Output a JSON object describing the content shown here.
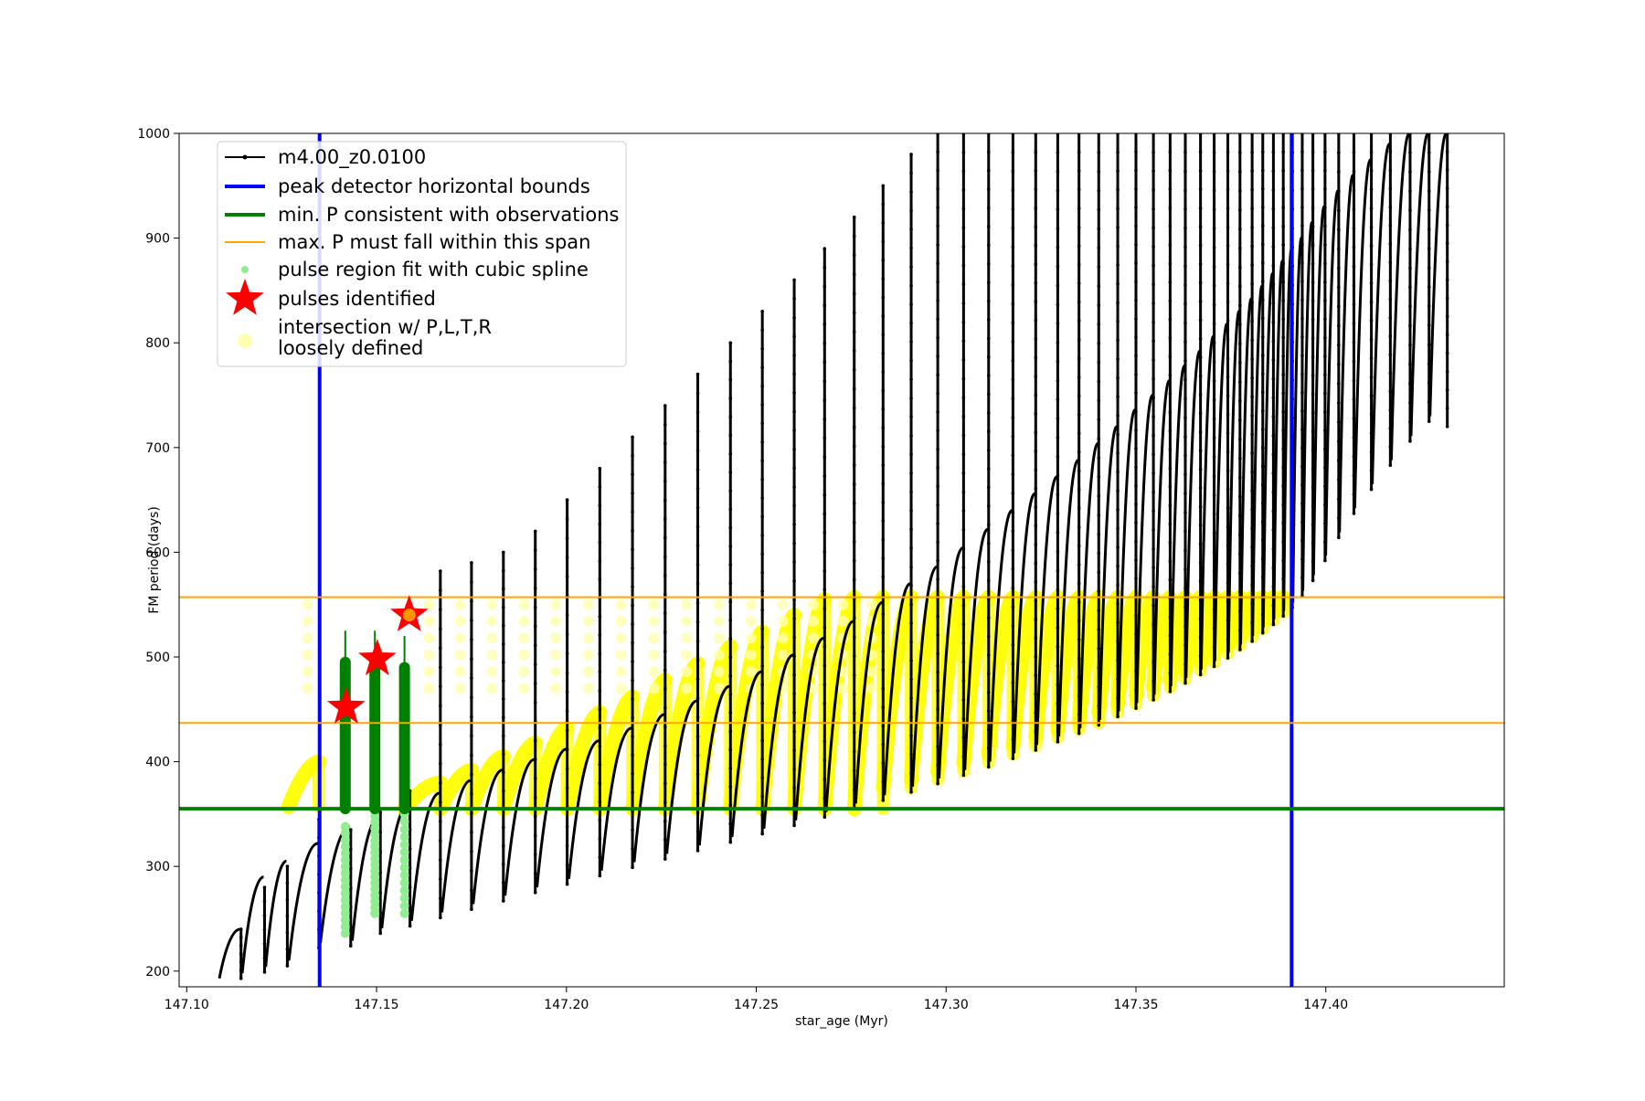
{
  "chart_data": {
    "type": "scatter",
    "title": "",
    "xlabel": "star_age (Myr)",
    "ylabel": "FM period (days)",
    "xlim": [
      147.098,
      147.447
    ],
    "ylim": [
      185,
      1000
    ],
    "xticks": [
      "147.10",
      "147.15",
      "147.20",
      "147.25",
      "147.30",
      "147.35",
      "147.40"
    ],
    "yticks": [
      "200",
      "300",
      "400",
      "500",
      "600",
      "700",
      "800",
      "900",
      "1000"
    ],
    "grid": false,
    "legend_position": "top-left",
    "legend": [
      {
        "label": "m4.00_z0.0100",
        "marker": "line-dot",
        "color": "#000000"
      },
      {
        "label": "peak detector horizontal bounds",
        "marker": "line",
        "color": "#0000ff"
      },
      {
        "label": "min. P consistent with observations",
        "marker": "line",
        "color": "#008000"
      },
      {
        "label": "max. P must fall within this span",
        "marker": "line",
        "color": "#ffa500"
      },
      {
        "label": "pulse region fit with cubic spline",
        "marker": "dot",
        "color": "#90ee90"
      },
      {
        "label": "pulses identified",
        "marker": "star",
        "color": "#ff0000"
      },
      {
        "label": "intersection w/ P,L,T,R",
        "label2": "loosely defined",
        "marker": "circle",
        "color": "#ffffb0"
      }
    ],
    "vertical_lines": [
      {
        "name": "peak detector horizontal bounds",
        "x": [
          147.135,
          147.391
        ],
        "color": "#0000ff"
      }
    ],
    "horizontal_lines": [
      {
        "name": "min. P consistent with observations",
        "y": 355,
        "color": "#008000"
      },
      {
        "name": "max. P must fall within this span",
        "y": [
          437,
          557
        ],
        "color": "#ffa500"
      }
    ],
    "series_track": {
      "name": "m4.00_z0.0100",
      "color": "#000000",
      "pulse_x": [
        147.1143,
        147.1205,
        147.1265,
        147.1348,
        147.1432,
        147.151,
        147.1588,
        147.1668,
        147.175,
        147.1834,
        147.1918,
        147.2002,
        147.2088,
        147.2174,
        147.226,
        147.2346,
        147.2432,
        147.2516,
        147.26,
        147.268,
        147.2758,
        147.2834,
        147.2908,
        147.2978,
        147.3046,
        147.3112,
        147.3176,
        147.3236,
        147.3294,
        147.335,
        147.3402,
        147.3452,
        147.35,
        147.3546,
        147.359,
        147.363,
        147.367,
        147.3706,
        147.3742,
        147.3774,
        147.3806,
        147.3834,
        147.3862,
        147.3888,
        147.3912,
        147.3938,
        147.3966,
        147.3998,
        147.4034,
        147.4074,
        147.412,
        147.417,
        147.4222,
        147.4272,
        147.432
      ],
      "pulse_min_period": [
        193,
        199,
        205,
        222,
        224,
        236,
        243,
        251,
        259,
        267,
        275,
        283,
        291,
        299,
        307,
        315,
        323,
        331,
        339,
        347,
        355,
        363,
        371,
        379,
        387,
        395,
        403,
        411,
        419,
        427,
        435,
        443,
        451,
        459,
        467,
        475,
        483,
        491,
        499,
        507,
        515,
        523,
        531,
        539,
        547,
        558,
        573,
        592,
        614,
        637,
        660,
        683,
        706,
        725,
        720
      ],
      "pulse_max_period": [
        240,
        280,
        300,
        345,
        335,
        352,
        372,
        582,
        590,
        600,
        620,
        650,
        680,
        710,
        740,
        770,
        800,
        830,
        860,
        890,
        920,
        950,
        980,
        1000,
        1000,
        1000,
        1000,
        1000,
        1000,
        1000,
        1000,
        1000,
        1000,
        1000,
        1000,
        1000,
        1000,
        1000,
        1000,
        1000,
        1000,
        1000,
        1000,
        1000,
        1000,
        1000,
        1000,
        1000,
        1000,
        1000,
        1000,
        1000,
        1000,
        1000,
        1000
      ],
      "envelope_before_pulse": [
        240,
        290,
        305,
        322,
        338,
        348,
        360,
        370,
        382,
        392,
        402,
        412,
        420,
        432,
        445,
        458,
        472,
        486,
        502,
        518,
        534,
        552,
        570,
        586,
        604,
        622,
        640,
        656,
        672,
        688,
        704,
        720,
        736,
        750,
        764,
        778,
        792,
        806,
        818,
        830,
        842,
        854,
        866,
        878,
        890,
        900,
        915,
        930,
        945,
        960,
        975,
        990,
        1000,
        1000,
        1000
      ]
    },
    "series_spline_fit": {
      "name": "pulse region fit with cubic spline",
      "color": "#90ee90",
      "x": [
        147.1432,
        147.151,
        147.1588
      ],
      "y_min": [
        236,
        255,
        255
      ],
      "y_max": [
        338,
        348,
        372
      ]
    },
    "series_green_band": {
      "color": "#008000",
      "x": [
        147.1432,
        147.151,
        147.1588
      ],
      "y_min": [
        355,
        355,
        355
      ],
      "y_max": [
        525,
        525,
        520
      ]
    },
    "series_pulses_identified": {
      "name": "pulses identified",
      "color": "#ff0000",
      "points": [
        {
          "x": 147.142,
          "y": 452
        },
        {
          "x": 147.1502,
          "y": 498
        },
        {
          "x": 147.1586,
          "y": 540
        }
      ]
    },
    "series_intersection": {
      "name": "intersection w/ P,L,T,R loosely defined",
      "color": "#ffff00",
      "pulse_x": [
        147.1348,
        147.1668,
        147.175,
        147.1834,
        147.1918,
        147.2002,
        147.2088,
        147.2174,
        147.226,
        147.2346,
        147.2432,
        147.2516,
        147.26,
        147.268,
        147.2758,
        147.2834,
        147.2908,
        147.2978,
        147.3046,
        147.3112,
        147.3176,
        147.3236,
        147.3294,
        147.335,
        147.3402,
        147.3452,
        147.35,
        147.3546,
        147.359,
        147.363,
        147.367,
        147.3706,
        147.3742,
        147.3774,
        147.3806,
        147.3834,
        147.3862,
        147.3888
      ],
      "y_low": [
        357,
        355,
        355,
        355,
        355,
        355,
        355,
        355,
        355,
        355,
        355,
        355,
        355,
        355,
        355,
        355,
        375,
        383,
        391,
        399,
        407,
        415,
        423,
        431,
        437,
        447,
        455,
        463,
        471,
        479,
        487,
        495,
        503,
        511,
        519,
        527,
        535,
        543
      ],
      "y_high": [
        400,
        380,
        392,
        405,
        418,
        432,
        447,
        462,
        478,
        494,
        510,
        524,
        540,
        555,
        557,
        557,
        557,
        557,
        557,
        557,
        557,
        557,
        557,
        557,
        557,
        557,
        557,
        557,
        557,
        557,
        557,
        557,
        557,
        557,
        557,
        557,
        557,
        557
      ]
    }
  }
}
